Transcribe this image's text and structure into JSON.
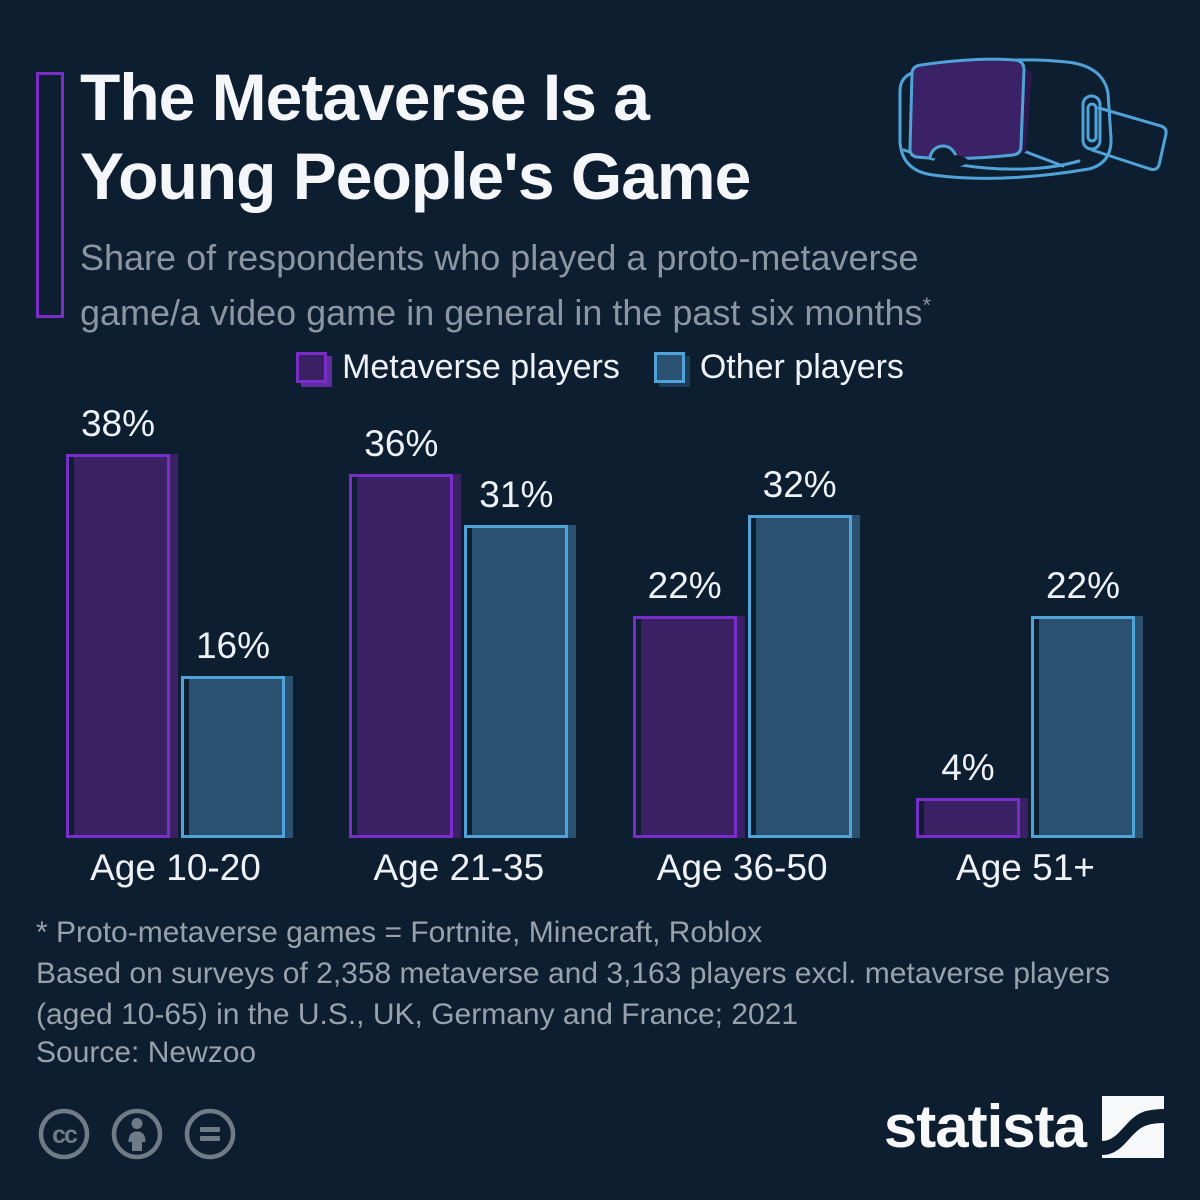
{
  "header": {
    "title_line1": "The Metaverse Is a",
    "title_line2": "Young People's Game",
    "subtitle_line1": "Share of respondents who played a proto-metaverse",
    "subtitle_line2": "game/a video game in general in the past six months",
    "footnote_marker": "*"
  },
  "legend": [
    {
      "label": "Metaverse players"
    },
    {
      "label": "Other players"
    }
  ],
  "chart_data": {
    "type": "bar",
    "categories": [
      "Age 10-20",
      "Age 21-35",
      "Age 36-50",
      "Age 51+"
    ],
    "series": [
      {
        "name": "Metaverse players",
        "values": [
          38,
          36,
          22,
          4
        ]
      },
      {
        "name": "Other players",
        "values": [
          16,
          31,
          32,
          22
        ]
      }
    ],
    "unit": "%",
    "ylim": [
      0,
      40
    ],
    "grid": false,
    "legend_position": "top",
    "value_labels": true,
    "title": "The Metaverse Is a Young People's Game",
    "xlabel": "",
    "ylabel": ""
  },
  "footnotes": {
    "line1": "* Proto-metaverse games = Fortnite, Minecraft, Roblox",
    "line2": "Based on surveys of 2,358 metaverse and 3,163 players excl. metaverse players",
    "line3": "(aged 10-65) in the U.S., UK, Germany and France; 2021",
    "source": "Source: Newzoo"
  },
  "branding": {
    "logo_text": "statista"
  },
  "license_icons": [
    "cc-icon",
    "attribution-icon",
    "equals-icon"
  ],
  "colors": {
    "background": "#0d1e30",
    "title": "#f4f6f9",
    "subtitle": "#8b96a2",
    "footnote": "#98a2ad",
    "purple_fill": "#3a2164",
    "purple_stroke": "#7a2dc9",
    "blue_fill": "#2a5170",
    "blue_stroke": "#4fa3d8",
    "icon_gray": "#6f7b87"
  }
}
